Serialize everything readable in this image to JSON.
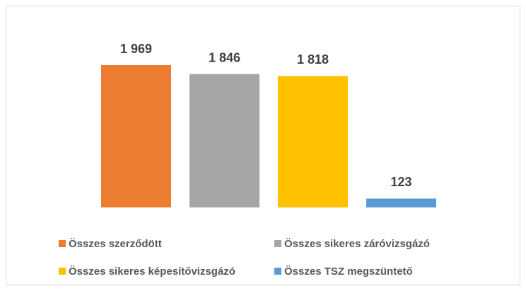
{
  "chart_data": {
    "type": "bar",
    "categories": [
      null
    ],
    "series": [
      {
        "name": "Összes szerződött",
        "color": "#ed7d31",
        "values": [
          1969
        ],
        "value_labels": [
          "1 969"
        ]
      },
      {
        "name": "Összes sikeres záróvizsgázó",
        "color": "#a5a5a5",
        "values": [
          1846
        ],
        "value_labels": [
          "1 846"
        ]
      },
      {
        "name": "Összes sikeres képesítővizsgázó",
        "color": "#ffc000",
        "values": [
          1818
        ],
        "value_labels": [
          "1 818"
        ]
      },
      {
        "name": "Összes TSZ megszüntető",
        "color": "#5b9bd5",
        "values": [
          123
        ],
        "value_labels": [
          "123"
        ]
      }
    ],
    "legend": "bottom"
  }
}
